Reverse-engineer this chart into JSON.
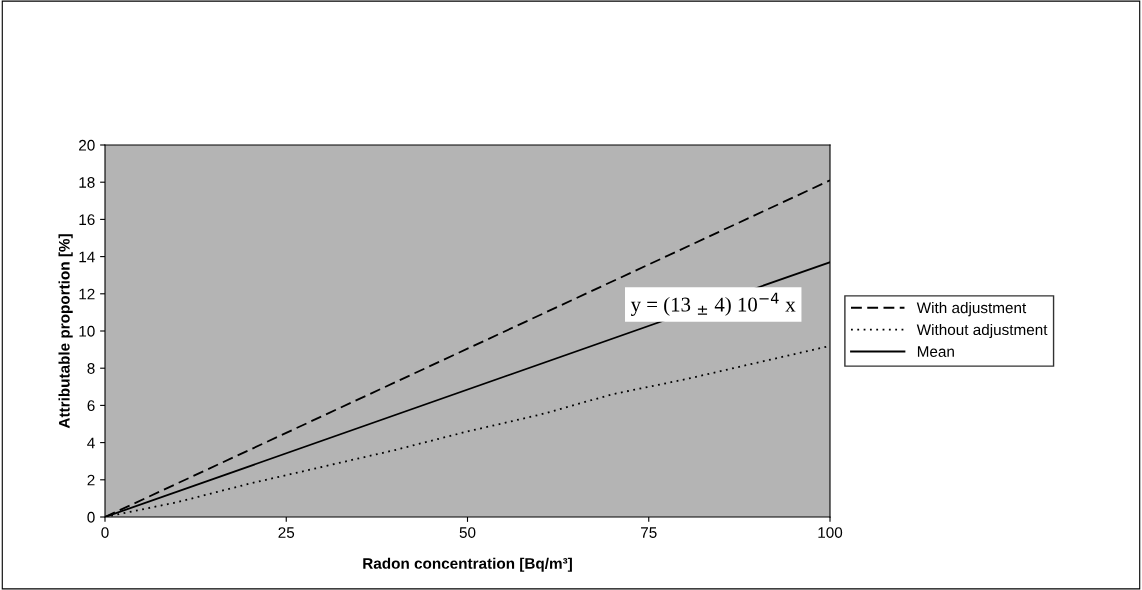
{
  "chart_data": {
    "type": "line",
    "xlabel": "Radon concentration [Bq/m³]",
    "ylabel": "Attributable proportion [%]",
    "xlim": [
      0,
      100
    ],
    "xticks": [
      0,
      25,
      50,
      75,
      100
    ],
    "ylim": [
      0,
      20
    ],
    "yticks": [
      0,
      2,
      4,
      6,
      8,
      10,
      12,
      14,
      16,
      18,
      20
    ],
    "legend": "right",
    "marker": "none",
    "series": [
      {
        "name": "With adjustment",
        "color": "#000000",
        "line_style": "dashed",
        "x": [
          0,
          100
        ],
        "values": [
          0,
          18.1
        ]
      },
      {
        "name": "Without adjustment",
        "color": "#000000",
        "line_style": "dotted",
        "x": [
          0,
          10,
          20,
          30,
          40,
          50,
          60,
          70,
          80,
          90,
          100
        ],
        "values": [
          0,
          0.8,
          1.8,
          2.7,
          3.6,
          4.6,
          5.5,
          6.6,
          7.4,
          8.3,
          9.2
        ]
      },
      {
        "name": "Mean",
        "color": "#000000",
        "line_style": "solid",
        "x": [
          0,
          100
        ],
        "values": [
          0,
          13.7
        ]
      }
    ],
    "annotations": [
      "y = (13 $_{±}$ 4) 10$^{−4}$ x"
    ]
  }
}
